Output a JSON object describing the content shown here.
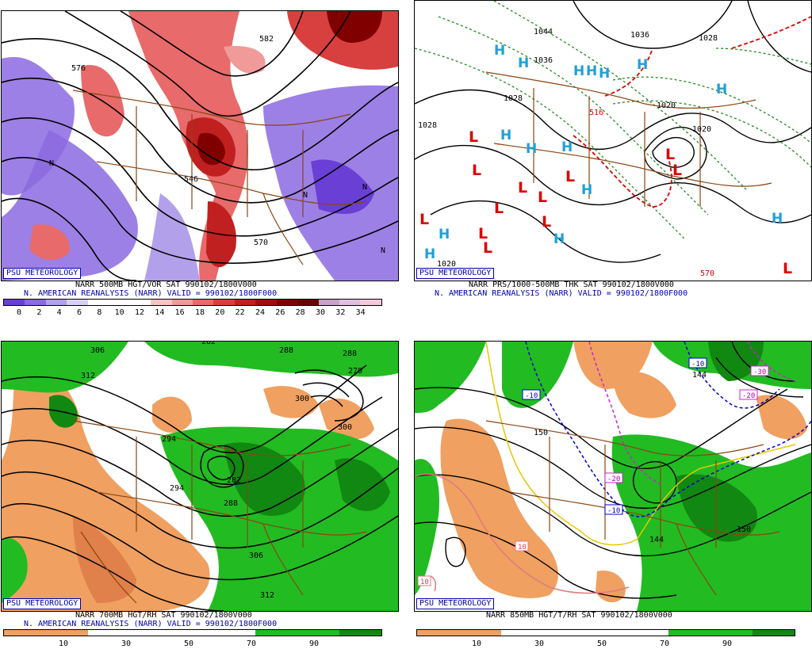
{
  "badge": "PSU METEOROLOGY",
  "panels": {
    "p1": {
      "title": "NARR 500MB HGT/VOR SAT 990102/1800V000",
      "subtitle": "N. AMERICAN REANALYSIS (NARR) VALID = 990102/1800F000",
      "scale_labels": [
        "0",
        "2",
        "4",
        "6",
        "8",
        "10",
        "12",
        "14",
        "16",
        "18",
        "20",
        "22",
        "24",
        "26",
        "28",
        "30",
        "32",
        "34"
      ],
      "scale_colors": [
        "#6a3fd6",
        "#8c6ae0",
        "#b3a0ea",
        "#d8d0f4",
        "#ffffff",
        "#ffffff",
        "#ffffff",
        "#f7c4c4",
        "#f09a9a",
        "#e86a6a",
        "#d84040",
        "#c02020",
        "#a00e0e",
        "#800000",
        "#6a0000",
        "#c8a0c8",
        "#e0c0e0",
        "#f4c8d8"
      ],
      "labels": [
        "576",
        "582",
        "570",
        "546",
        "N",
        "N",
        "N",
        "N"
      ]
    },
    "p2": {
      "title": "NARR PRS/1000-500MB THK SAT 990102/1800V000",
      "subtitle": "N. AMERICAN REANALYSIS (NARR) VALID = 990102/1800F000",
      "labels": [
        "1044",
        "1036",
        "1036",
        "1028",
        "1028",
        "1028",
        "1020",
        "1020",
        "1020",
        "516",
        "570",
        "H",
        "L"
      ]
    },
    "p3": {
      "title": "NARR 700MB HGT/RH SAT 990102/1800V000",
      "subtitle": "N. AMERICAN REANALYSIS (NARR) VALID = 990102/1800F000",
      "scale_labels": [
        "10",
        "30",
        "50",
        "70",
        "90"
      ],
      "labels": [
        "306",
        "312",
        "282",
        "288",
        "288",
        "270",
        "294",
        "300",
        "300",
        "282",
        "288",
        "306",
        "312",
        "294"
      ]
    },
    "p4": {
      "title": "NARR 850MB HGT/T/RH SAT 990102/1800V000",
      "scale_labels": [
        "10",
        "30",
        "50",
        "70",
        "90"
      ],
      "labels": [
        "-10",
        "-10",
        "-20",
        "-10",
        "-20",
        "-30",
        "-20",
        "144",
        "150",
        "144",
        "150",
        "10",
        "10",
        "-10"
      ]
    }
  },
  "colors": {
    "rh_dry": "#f0a060",
    "rh_moist": "#22bb22",
    "rh_wet": "#118811",
    "geo": "#8b4513",
    "badge": "#0000aa"
  }
}
